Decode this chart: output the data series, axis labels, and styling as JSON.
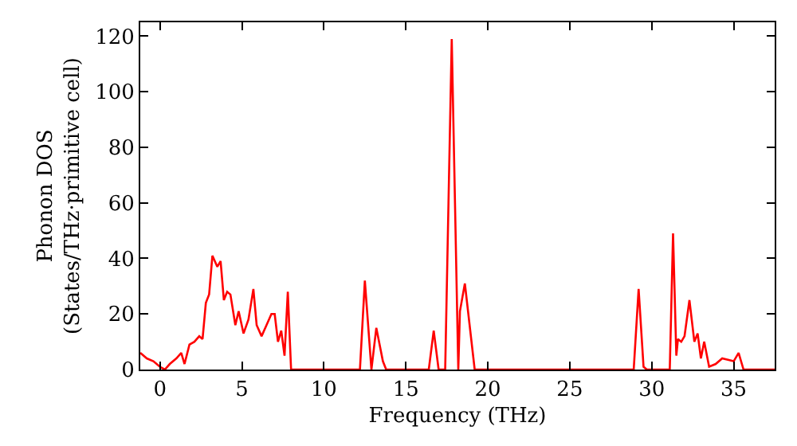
{
  "chart_data": {
    "type": "line",
    "xlabel": "Frequency (THz)",
    "ylabel": "Phonon DOS\n(States/THz·primitive cell)",
    "x": [
      -1.2,
      -0.8,
      -0.4,
      0,
      0.3,
      0.6,
      1,
      1.3,
      1.5,
      1.8,
      2.1,
      2.4,
      2.6,
      2.8,
      3.0,
      3.2,
      3.5,
      3.7,
      3.9,
      4.1,
      4.3,
      4.6,
      4.8,
      5.1,
      5.4,
      5.7,
      5.9,
      6.2,
      6.5,
      6.8,
      7.0,
      7.2,
      7.4,
      7.6,
      7.8,
      8.0,
      12.2,
      12.5,
      12.9,
      13.2,
      13.6,
      13.8,
      16.4,
      16.7,
      17.0,
      17.4,
      17.8,
      18.2,
      18.3,
      18.6,
      19.2,
      28.9,
      29.2,
      29.5,
      29.7,
      31.1,
      31.3,
      31.5,
      31.6,
      31.8,
      32.0,
      32.3,
      32.6,
      32.8,
      33.0,
      33.2,
      33.5,
      33.9,
      34.3,
      35.0,
      35.3,
      35.6,
      37.5
    ],
    "series": [
      {
        "color": "#ff0000",
        "values": [
          6,
          4,
          3,
          1,
          0,
          2,
          4,
          6,
          2,
          9,
          10,
          12,
          11,
          24,
          27,
          41,
          37,
          39,
          25,
          28,
          27,
          16,
          21,
          13,
          18,
          29,
          16,
          12,
          16,
          20,
          20,
          10,
          14,
          5,
          28,
          0,
          0,
          32,
          0,
          15,
          3,
          0,
          0,
          14,
          0,
          0,
          119,
          0,
          21,
          31,
          0,
          0,
          29,
          1,
          0,
          0,
          49,
          5,
          11,
          10,
          12,
          25,
          10,
          13,
          4,
          10,
          1,
          2,
          4,
          3,
          6,
          0,
          0
        ]
      }
    ],
    "xlim": [
      -1.2,
      37.5
    ],
    "ylim": [
      0,
      125
    ],
    "xticks": [
      0,
      5,
      10,
      15,
      20,
      25,
      30,
      35
    ],
    "yticks": [
      0,
      20,
      40,
      60,
      80,
      100,
      120
    ]
  }
}
